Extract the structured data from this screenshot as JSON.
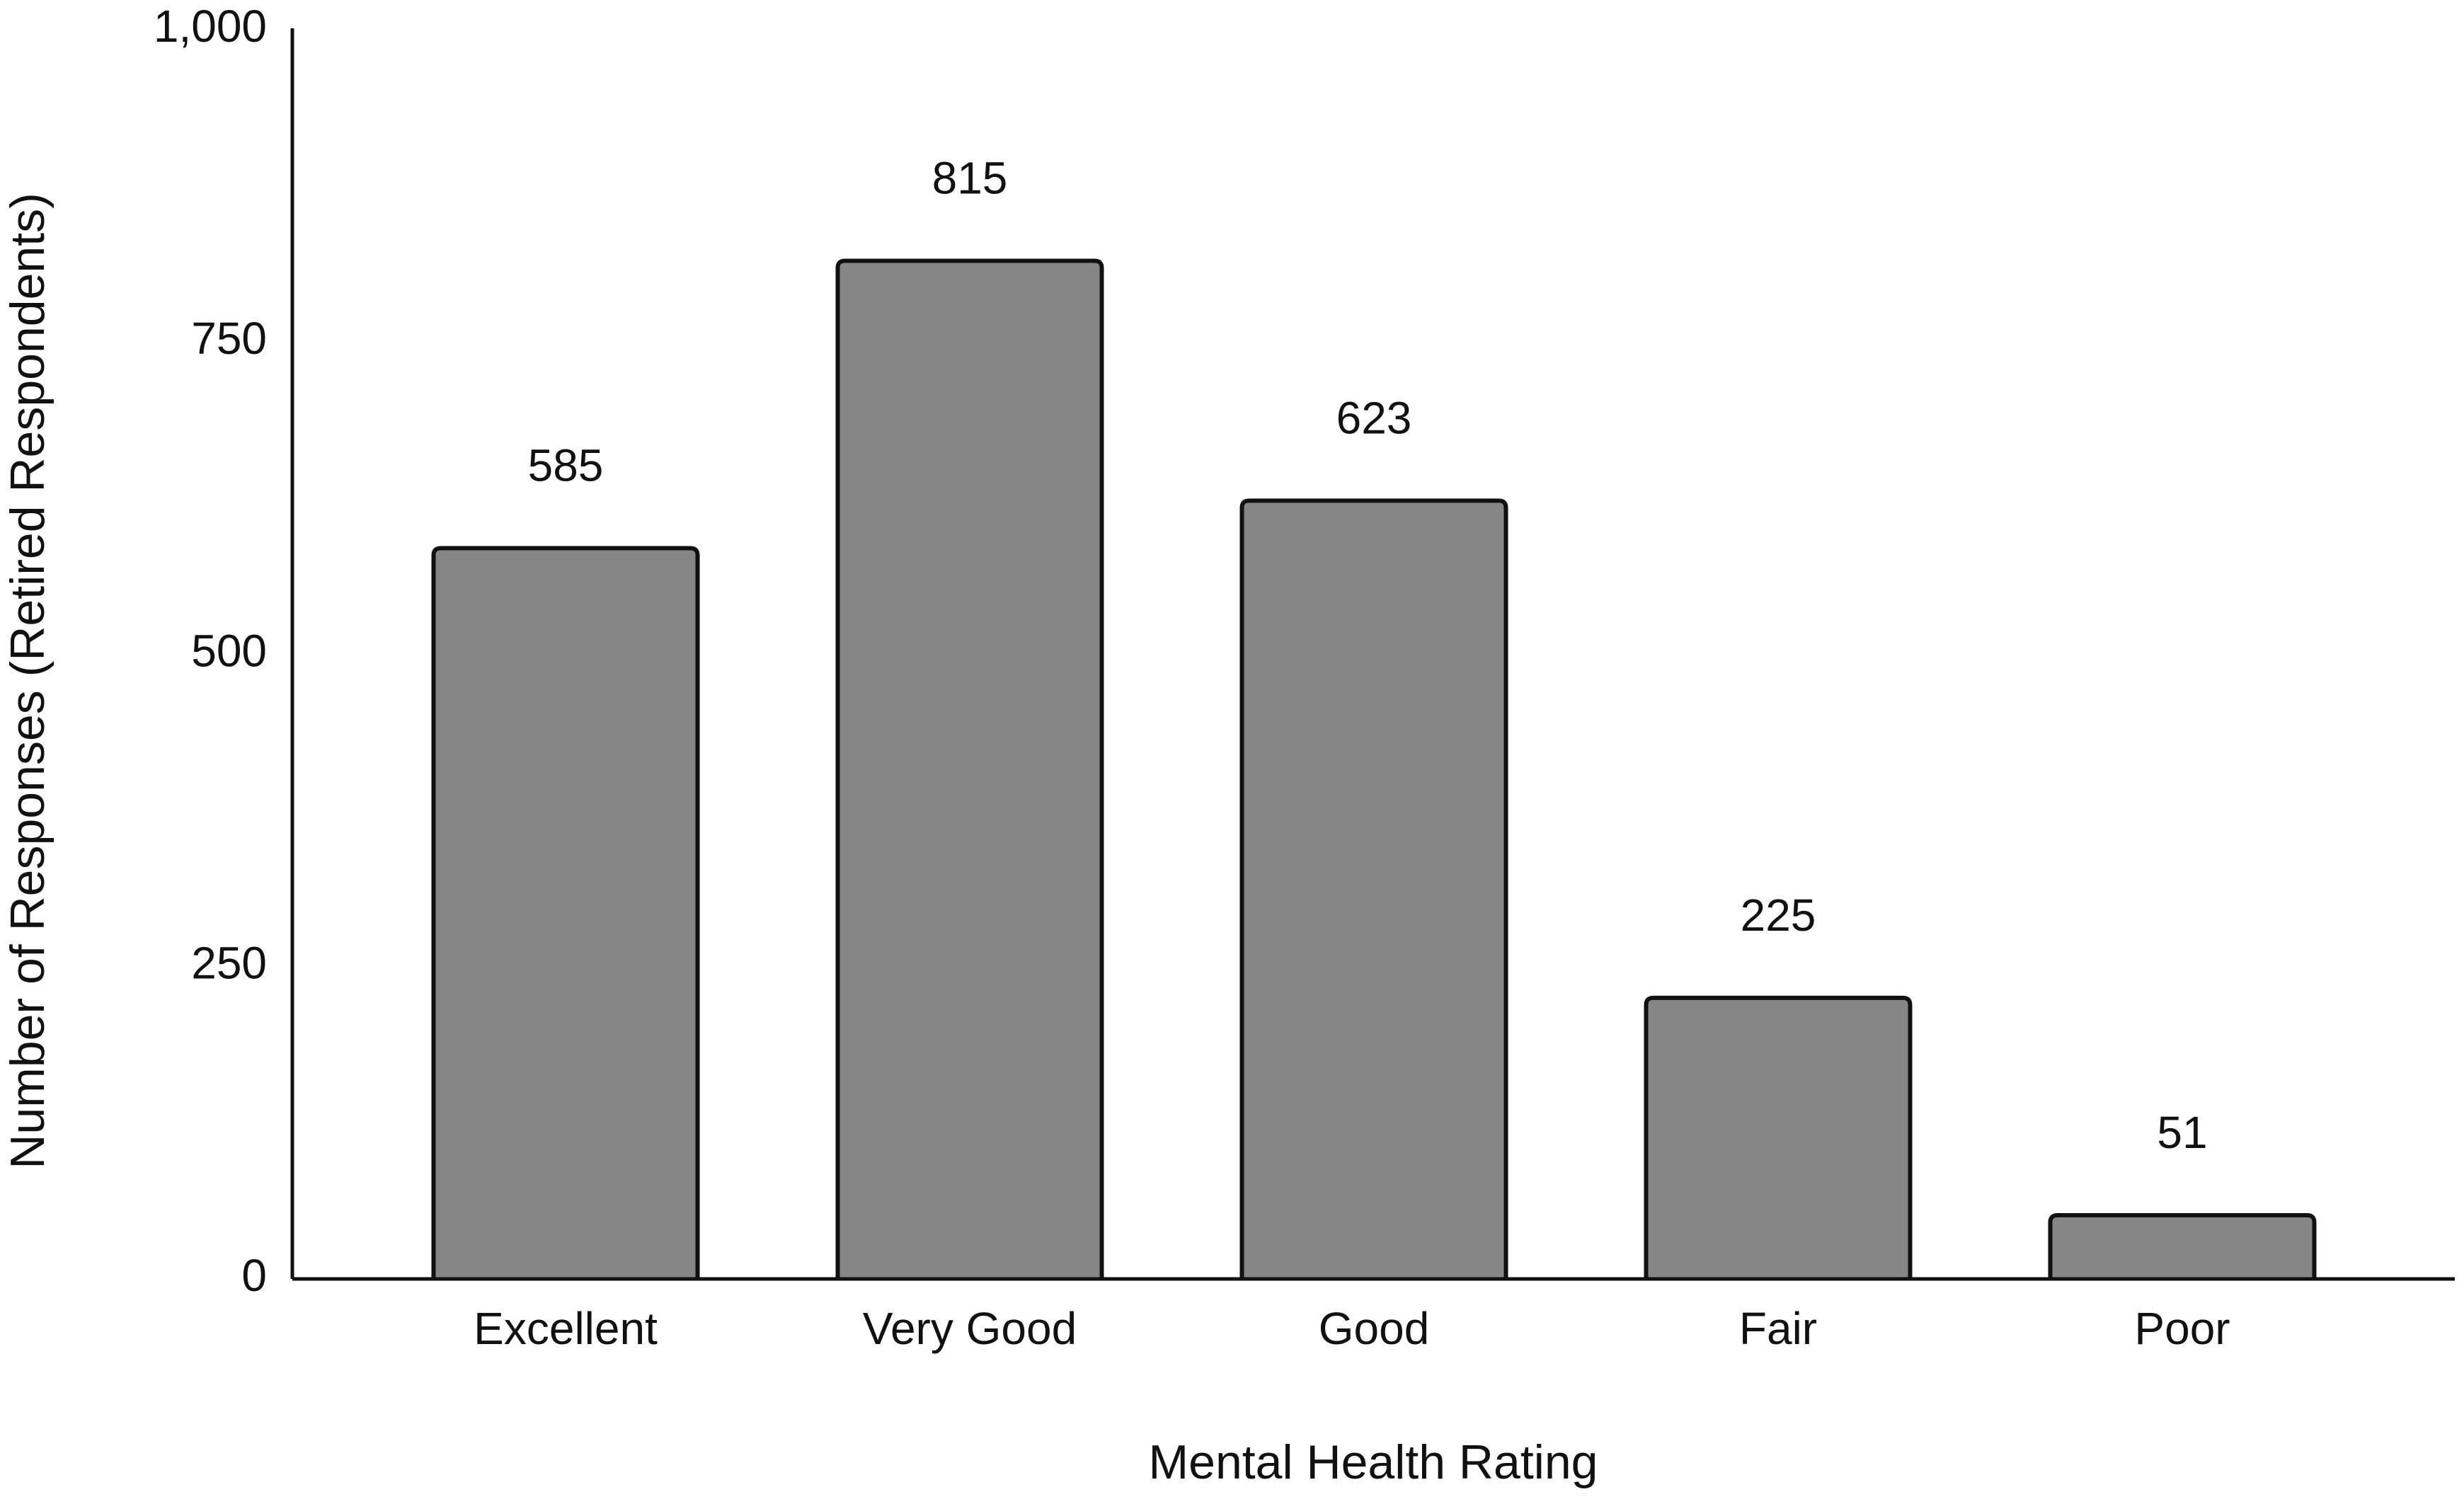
{
  "chart_data": {
    "type": "bar",
    "x_label": "Mental Health Rating",
    "y_label": "Number of Responses (Retired Respondents)",
    "categories": [
      "Excellent",
      "Very Good",
      "Good",
      "Fair",
      "Poor"
    ],
    "values": [
      585,
      815,
      623,
      225,
      51
    ],
    "color": "#868686",
    "ylim": [
      0,
      1000
    ],
    "yticks": [
      0,
      250,
      500,
      750,
      {
        "value": 1000,
        "label": "1,000"
      }
    ],
    "grid": false,
    "data_labels": true
  }
}
